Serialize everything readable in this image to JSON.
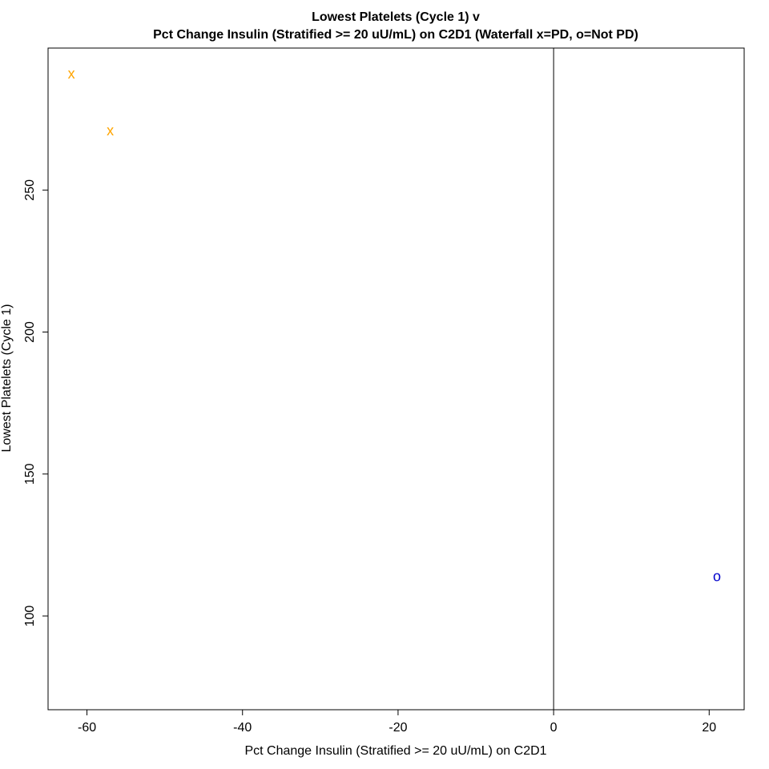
{
  "chart_data": {
    "type": "scatter",
    "title": "Lowest Platelets (Cycle 1) v",
    "subtitle": "Pct Change Insulin (Stratified >= 20 uU/mL) on C2D1 (Waterfall x=PD, o=Not PD)",
    "xlabel": "Pct Change Insulin (Stratified >= 20 uU/mL) on C2D1",
    "ylabel": "Lowest Platelets (Cycle 1)",
    "xlim": [
      -65,
      24.5
    ],
    "ylim": [
      67,
      300
    ],
    "xticks": [
      -60,
      -40,
      -20,
      0,
      20
    ],
    "yticks": [
      100,
      150,
      200,
      250
    ],
    "reference_line_x": 0,
    "grid": false,
    "points": [
      {
        "x": -62,
        "y": 291,
        "marker": "x",
        "color": "#FFA500"
      },
      {
        "x": -57,
        "y": 271,
        "marker": "x",
        "color": "#FFA500"
      },
      {
        "x": 21,
        "y": 114,
        "marker": "o",
        "color": "#0000CC"
      }
    ]
  }
}
